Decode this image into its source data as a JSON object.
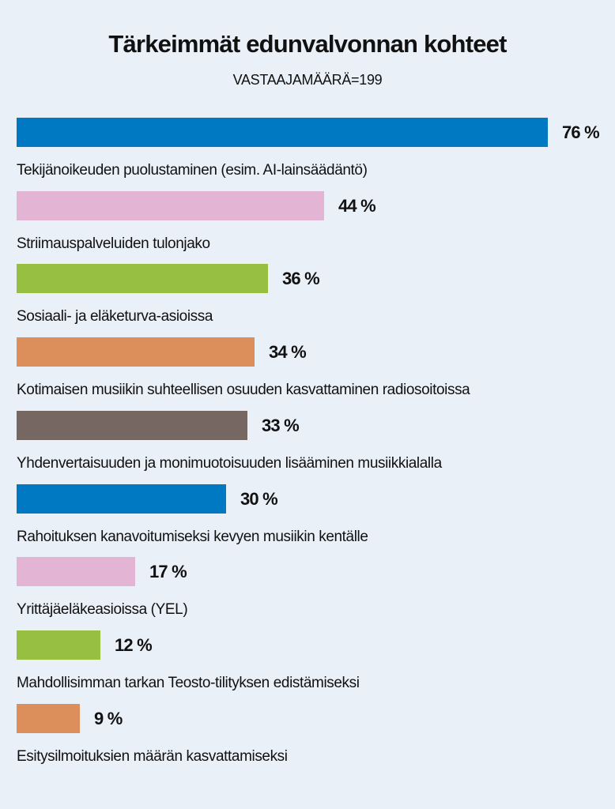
{
  "chart_data": {
    "type": "bar",
    "orientation": "horizontal",
    "title": "Tärkeimmät edunvalvonnan kohteet",
    "subtitle": "VASTAAJAMÄÄRÄ=199",
    "unit": "%",
    "xlim": [
      0,
      76
    ],
    "grid": false,
    "legend": "none",
    "categories": [
      "Tekijänoikeuden puolustaminen (esim. AI-lainsäädäntö)",
      "Striimauspalveluiden tulonjako",
      "Sosiaali- ja eläketurva-asioissa",
      "Kotimaisen musiikin suhteellisen osuuden kasvattaminen radiosoitoissa",
      "Yhdenvertaisuuden ja monimuotoisuuden lisääminen musiikkialalla",
      "Rahoituksen kanavoitumiseksi kevyen musiikin kentälle",
      "Yrittäjäeläkeasioissa (YEL)",
      "Mahdollisimman tarkan Teosto-tilityksen edistämiseksi",
      "Esitysilmoituksien määrän kasvattamiseksi"
    ],
    "values": [
      76,
      44,
      36,
      34,
      33,
      30,
      17,
      12,
      9
    ],
    "value_labels": [
      "76 %",
      "44 %",
      "36 %",
      "34 %",
      "33 %",
      "30 %",
      "17 %",
      "12 %",
      "9 %"
    ],
    "colors": [
      "#0079c2",
      "#e4b4d4",
      "#97bf41",
      "#dc8e5b",
      "#766762",
      "#0079c2",
      "#e4b4d4",
      "#97bf41",
      "#dc8e5b"
    ]
  }
}
